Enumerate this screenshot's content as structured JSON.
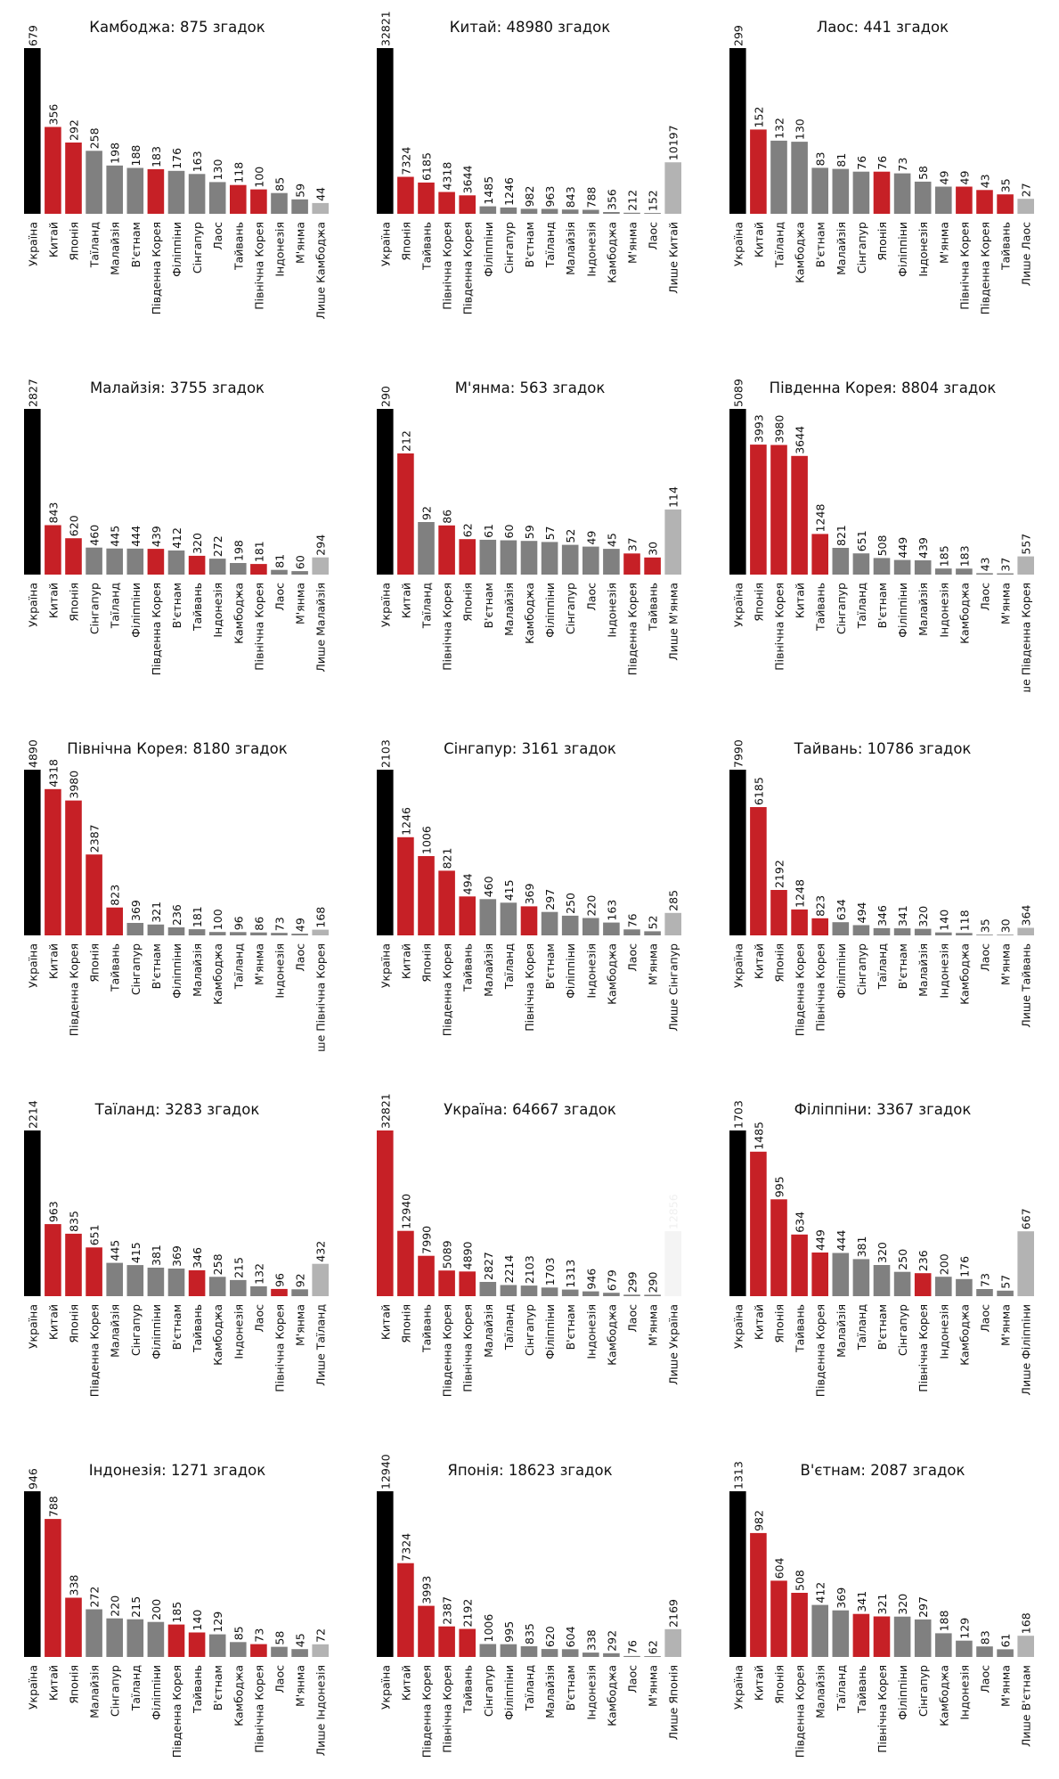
{
  "colors": {
    "ukraine": "#000000",
    "highlight": "#c62026",
    "neutral": "#808080",
    "only": "#b3b3b3",
    "only_faint": "#f4f4f4",
    "label": "#111111",
    "only_label_faint": "#f0f0f0"
  },
  "chart_data": [
    {
      "type": "bar",
      "title": "Камбоджа: 875 згадок",
      "categories": [
        "Україна",
        "Китай",
        "Японія",
        "Таїланд",
        "Малайзія",
        "В'єтнам",
        "Південна Корея",
        "Філіппіни",
        "Сінгапур",
        "Лаос",
        "Тайвань",
        "Північна Корея",
        "Індонезія",
        "М'янма",
        "Лише Камбоджа"
      ],
      "values": [
        679,
        356,
        292,
        258,
        198,
        188,
        183,
        176,
        163,
        130,
        118,
        100,
        85,
        59,
        44
      ],
      "highlight": [
        1,
        2,
        6,
        10,
        11
      ]
    },
    {
      "type": "bar",
      "title": "Китай: 48980 згадок",
      "categories": [
        "Україна",
        "Японія",
        "Тайвань",
        "Північна Корея",
        "Південна Корея",
        "Філіппіни",
        "Сінгапур",
        "В'єтнам",
        "Таїланд",
        "Малайзія",
        "Індонезія",
        "Камбоджа",
        "М'янма",
        "Лаос",
        "Лише Китай"
      ],
      "values": [
        32821,
        7324,
        6185,
        4318,
        3644,
        1485,
        1246,
        982,
        963,
        843,
        788,
        356,
        212,
        152,
        10197
      ],
      "highlight": [
        1,
        2,
        3,
        4
      ]
    },
    {
      "type": "bar",
      "title": "Лаос: 441 згадок",
      "categories": [
        "Україна",
        "Китай",
        "Таїланд",
        "Камбоджа",
        "В'єтнам",
        "Малайзія",
        "Сінгапур",
        "Японія",
        "Філіппіни",
        "Індонезія",
        "М'янма",
        "Північна Корея",
        "Південна Корея",
        "Тайвань",
        "Лише Лаос"
      ],
      "values": [
        299,
        152,
        132,
        130,
        83,
        81,
        76,
        76,
        73,
        58,
        49,
        49,
        43,
        35,
        27
      ],
      "highlight": [
        1,
        7,
        11,
        12,
        13
      ]
    },
    {
      "type": "bar",
      "title": "Малайзія: 3755 згадок",
      "categories": [
        "Україна",
        "Китай",
        "Японія",
        "Сінгапур",
        "Таїланд",
        "Філіппіни",
        "Південна Корея",
        "В'єтнам",
        "Тайвань",
        "Індонезія",
        "Камбоджа",
        "Північна Корея",
        "Лаос",
        "М'янма",
        "Лише Малайзія"
      ],
      "values": [
        2827,
        843,
        620,
        460,
        445,
        444,
        439,
        412,
        320,
        272,
        198,
        181,
        81,
        60,
        294
      ],
      "highlight": [
        1,
        2,
        6,
        8,
        11
      ]
    },
    {
      "type": "bar",
      "title": "М'янма: 563 згадок",
      "categories": [
        "Україна",
        "Китай",
        "Таїланд",
        "Північна Корея",
        "Японія",
        "В'єтнам",
        "Малайзія",
        "Камбоджа",
        "Філіппіни",
        "Сінгапур",
        "Лаос",
        "Індонезія",
        "Південна Корея",
        "Тайвань",
        "Лише М'янма"
      ],
      "values": [
        290,
        212,
        92,
        86,
        62,
        61,
        60,
        59,
        57,
        52,
        49,
        45,
        37,
        30,
        114
      ],
      "highlight": [
        1,
        3,
        4,
        12,
        13
      ]
    },
    {
      "type": "bar",
      "title": "Південна Корея: 8804 згадок",
      "categories": [
        "Україна",
        "Японія",
        "Північна Корея",
        "Китай",
        "Тайвань",
        "Сінгапур",
        "Таїланд",
        "В'єтнам",
        "Філіппіни",
        "Малайзія",
        "Індонезія",
        "Камбоджа",
        "Лаос",
        "М'янма",
        "Лише Південна Корея"
      ],
      "values": [
        5089,
        3993,
        3980,
        3644,
        1248,
        821,
        651,
        508,
        449,
        439,
        185,
        183,
        43,
        37,
        557
      ],
      "highlight": [
        1,
        2,
        3,
        4
      ]
    },
    {
      "type": "bar",
      "title": "Північна Корея: 8180 згадок",
      "categories": [
        "Україна",
        "Китай",
        "Південна Корея",
        "Японія",
        "Тайвань",
        "Сінгапур",
        "В'єтнам",
        "Філіппіни",
        "Малайзія",
        "Камбоджа",
        "Таїланд",
        "М'янма",
        "Індонезія",
        "Лаос",
        "Лише Північна Корея"
      ],
      "values": [
        4890,
        4318,
        3980,
        2387,
        823,
        369,
        321,
        236,
        181,
        100,
        96,
        86,
        73,
        49,
        168
      ],
      "highlight": [
        1,
        2,
        3,
        4
      ]
    },
    {
      "type": "bar",
      "title": "Сінгапур: 3161 згадок",
      "categories": [
        "Україна",
        "Китай",
        "Японія",
        "Південна Корея",
        "Тайвань",
        "Малайзія",
        "Таїланд",
        "Північна Корея",
        "В'єтнам",
        "Філіппіни",
        "Індонезія",
        "Камбоджа",
        "Лаос",
        "М'янма",
        "Лише Сінгапур"
      ],
      "values": [
        2103,
        1246,
        1006,
        821,
        494,
        460,
        415,
        369,
        297,
        250,
        220,
        163,
        76,
        52,
        285
      ],
      "highlight": [
        1,
        2,
        3,
        4,
        7
      ]
    },
    {
      "type": "bar",
      "title": "Тайвань: 10786 згадок",
      "categories": [
        "Україна",
        "Китай",
        "Японія",
        "Південна Корея",
        "Північна Корея",
        "Філіппіни",
        "Сінгапур",
        "Таїланд",
        "В'єтнам",
        "Малайзія",
        "Індонезія",
        "Камбоджа",
        "Лаос",
        "М'янма",
        "Лише Тайвань"
      ],
      "values": [
        7990,
        6185,
        2192,
        1248,
        823,
        634,
        494,
        346,
        341,
        320,
        140,
        118,
        35,
        30,
        364
      ],
      "highlight": [
        1,
        2,
        3,
        4
      ]
    },
    {
      "type": "bar",
      "title": "Таїланд: 3283 згадок",
      "categories": [
        "Україна",
        "Китай",
        "Японія",
        "Південна Корея",
        "Малайзія",
        "Сінгапур",
        "Філіппіни",
        "В'єтнам",
        "Тайвань",
        "Камбоджа",
        "Індонезія",
        "Лаос",
        "Північна Корея",
        "М'янма",
        "Лише Таїланд"
      ],
      "values": [
        2214,
        963,
        835,
        651,
        445,
        415,
        381,
        369,
        346,
        258,
        215,
        132,
        96,
        92,
        432
      ],
      "highlight": [
        1,
        2,
        3,
        8,
        12
      ]
    },
    {
      "type": "bar",
      "title": "Україна: 64667 згадок",
      "categories": [
        "Китай",
        "Японія",
        "Тайвань",
        "Південна Корея",
        "Північна Корея",
        "Малайзія",
        "Таїланд",
        "Сінгапур",
        "Філіппіни",
        "В'єтнам",
        "Індонезія",
        "Камбоджа",
        "Лаос",
        "М'янма",
        "Лише Україна"
      ],
      "values": [
        32821,
        12940,
        7990,
        5089,
        4890,
        2827,
        2214,
        2103,
        1703,
        1313,
        946,
        679,
        299,
        290,
        12856
      ],
      "highlight": [
        0,
        1,
        2,
        3,
        4
      ],
      "first_is_ukraine": false,
      "only_faint": true
    },
    {
      "type": "bar",
      "title": "Філіппіни: 3367 згадок",
      "categories": [
        "Україна",
        "Китай",
        "Японія",
        "Тайвань",
        "Південна Корея",
        "Малайзія",
        "Таїланд",
        "В'єтнам",
        "Сінгапур",
        "Північна Корея",
        "Індонезія",
        "Камбоджа",
        "Лаос",
        "М'янма",
        "Лише Філіппіни"
      ],
      "values": [
        1703,
        1485,
        995,
        634,
        449,
        444,
        381,
        320,
        250,
        236,
        200,
        176,
        73,
        57,
        667
      ],
      "highlight": [
        1,
        2,
        3,
        4,
        9
      ]
    },
    {
      "type": "bar",
      "title": "Індонезія: 1271 згадок",
      "categories": [
        "Україна",
        "Китай",
        "Японія",
        "Малайзія",
        "Сінгапур",
        "Таїланд",
        "Філіппіни",
        "Південна Корея",
        "Тайвань",
        "В'єтнам",
        "Камбоджа",
        "Північна Корея",
        "Лаос",
        "М'янма",
        "Лише Індонезія"
      ],
      "values": [
        946,
        788,
        338,
        272,
        220,
        215,
        200,
        185,
        140,
        129,
        85,
        73,
        58,
        45,
        72
      ],
      "highlight": [
        1,
        2,
        7,
        8,
        11
      ]
    },
    {
      "type": "bar",
      "title": "Японія: 18623 згадок",
      "categories": [
        "Україна",
        "Китай",
        "Південна Корея",
        "Північна Корея",
        "Тайвань",
        "Сінгапур",
        "Філіппіни",
        "Таїланд",
        "Малайзія",
        "В'єтнам",
        "Індонезія",
        "Камбоджа",
        "Лаос",
        "М'янма",
        "Лише Японія"
      ],
      "values": [
        12940,
        7324,
        3993,
        2387,
        2192,
        1006,
        995,
        835,
        620,
        604,
        338,
        292,
        76,
        62,
        2169
      ],
      "highlight": [
        1,
        2,
        3,
        4
      ]
    },
    {
      "type": "bar",
      "title": "В'єтнам: 2087 згадок",
      "categories": [
        "Україна",
        "Китай",
        "Японія",
        "Південна Корея",
        "Малайзія",
        "Таїланд",
        "Тайвань",
        "Північна Корея",
        "Філіппіни",
        "Сінгапур",
        "Камбоджа",
        "Індонезія",
        "Лаос",
        "М'янма",
        "Лише В'єтнам"
      ],
      "values": [
        1313,
        982,
        604,
        508,
        412,
        369,
        341,
        321,
        320,
        297,
        188,
        129,
        83,
        61,
        168
      ],
      "highlight": [
        1,
        2,
        3,
        6,
        7
      ]
    }
  ]
}
